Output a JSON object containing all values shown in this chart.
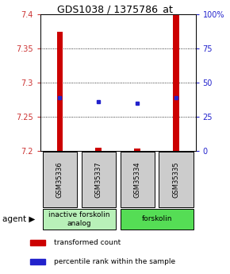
{
  "title": "GDS1038 / 1375786_at",
  "samples": [
    "GSM35336",
    "GSM35337",
    "GSM35334",
    "GSM35335"
  ],
  "red_values": [
    7.375,
    7.205,
    7.203,
    7.4
  ],
  "blue_values": [
    7.278,
    7.272,
    7.27,
    7.278
  ],
  "ylim": [
    7.2,
    7.4
  ],
  "yticks_left": [
    7.2,
    7.25,
    7.3,
    7.35,
    7.4
  ],
  "yticks_right": [
    0,
    25,
    50,
    75,
    100
  ],
  "groups": [
    {
      "label": "inactive forskolin\nanalog",
      "indices": [
        0,
        1
      ],
      "color": "#b8f0b8"
    },
    {
      "label": "forskolin",
      "indices": [
        2,
        3
      ],
      "color": "#55dd55"
    }
  ],
  "group_row_label": "agent",
  "legend_items": [
    {
      "color": "#cc0000",
      "label": "transformed count"
    },
    {
      "color": "#2222cc",
      "label": "percentile rank within the sample"
    }
  ],
  "bar_width": 0.15,
  "red_color": "#cc0000",
  "blue_color": "#2222cc",
  "title_fontsize": 9,
  "axis_label_color_left": "#cc3333",
  "axis_label_color_right": "#2222cc",
  "bg_sample_boxes": "#cccccc",
  "grid_color": "#000000",
  "sample_fontsize": 6,
  "tick_fontsize": 7,
  "legend_fontsize": 6.5,
  "group_fontsize": 6.5
}
